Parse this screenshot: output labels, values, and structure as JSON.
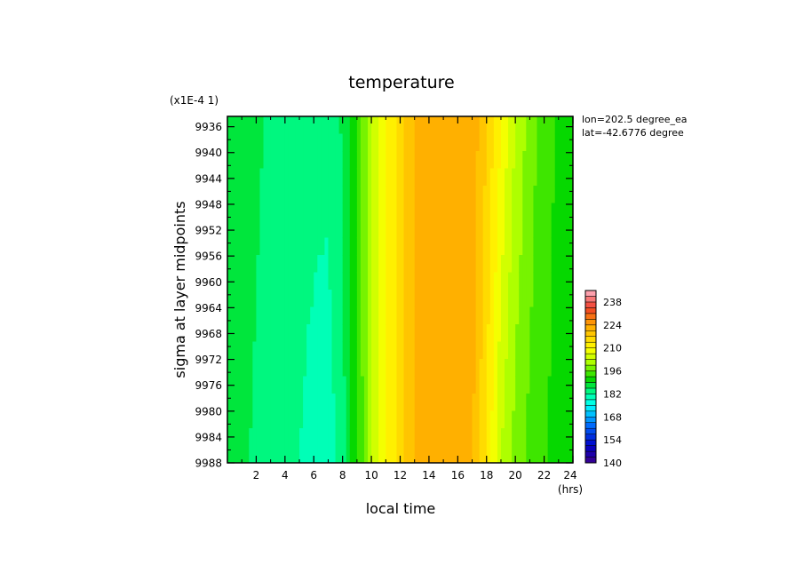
{
  "chart_data": {
    "type": "heatmap",
    "title": "temperature",
    "xlabel": "local time",
    "x_unit": "(hrs)",
    "ylabel": "sigma at layer midpoints",
    "y_scale_label": "(x1E-4 1)",
    "annotations": [
      "lon=202.5 degree_ea",
      "lat=-42.6776 degree"
    ],
    "x_ticks": [
      "2",
      "4",
      "6",
      "8",
      "10",
      "12",
      "14",
      "16",
      "18",
      "20",
      "22",
      "24"
    ],
    "y_ticks": [
      "9936",
      "9940",
      "9944",
      "9948",
      "9952",
      "9956",
      "9960",
      "9964",
      "9968",
      "9972",
      "9976",
      "9980",
      "9984",
      "9988"
    ],
    "xlim": [
      0,
      24
    ],
    "ylim": [
      9988,
      9934.4
    ],
    "colorbar": {
      "ticks": [
        "140",
        "154",
        "168",
        "182",
        "196",
        "210",
        "224",
        "238"
      ],
      "min": 140,
      "max": 245,
      "step": 3.5
    },
    "x": [
      0,
      1,
      2,
      3,
      4,
      5,
      6,
      7,
      8,
      9,
      10,
      11,
      12,
      13,
      14,
      15,
      16,
      17,
      18,
      19,
      20,
      21,
      22,
      23,
      24
    ],
    "y_top": 9934.4,
    "y_bottom": 9988,
    "values_top": [
      188,
      187,
      186,
      185,
      184,
      183,
      183,
      183,
      186,
      193,
      203,
      210,
      215,
      221,
      223,
      224,
      224,
      223,
      217,
      210,
      203,
      198,
      194,
      192,
      191
    ],
    "values_bottom": [
      187,
      186,
      185,
      184,
      183,
      182,
      181,
      180,
      184,
      192,
      202,
      210,
      215,
      221,
      223,
      224,
      222,
      221,
      213,
      203,
      198,
      195,
      193,
      191,
      190
    ]
  }
}
